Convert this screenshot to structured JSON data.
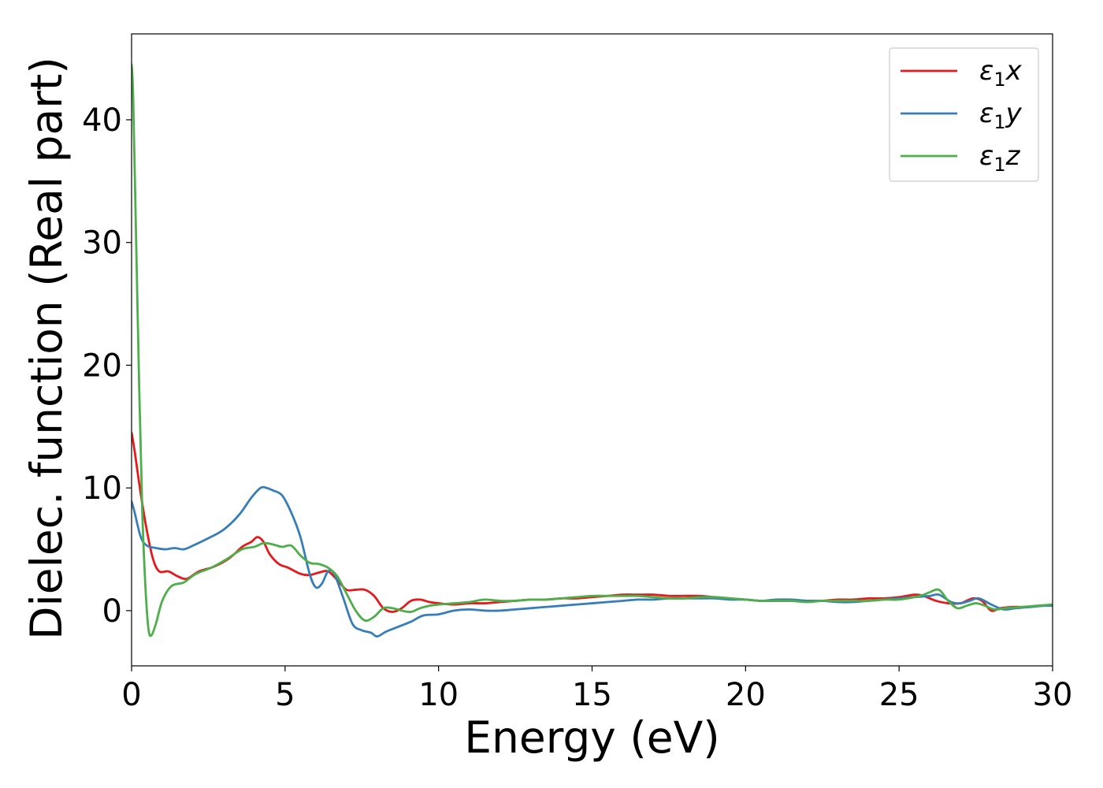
{
  "chart_data": {
    "type": "line",
    "title": "",
    "xlabel": "Energy (eV)",
    "ylabel": "Dielec. function (Real part)",
    "xlim": [
      0,
      30
    ],
    "ylim": [
      -4.5,
      47
    ],
    "xticks": [
      0,
      5,
      10,
      15,
      20,
      25,
      30
    ],
    "yticks": [
      0,
      10,
      20,
      30,
      40
    ],
    "grid": false,
    "legend_position": "top-right",
    "series": [
      {
        "name": "ε₁x",
        "label_main": "ε",
        "label_sub": "1",
        "label_suffix": "x",
        "color": "#e41a1c",
        "x": [
          0,
          0.1,
          0.3,
          0.5,
          0.7,
          0.9,
          1.2,
          1.5,
          1.8,
          2.2,
          2.7,
          3.2,
          3.6,
          3.9,
          4.1,
          4.3,
          4.5,
          4.8,
          5.1,
          5.5,
          5.8,
          6.1,
          6.4,
          6.7,
          7.0,
          7.3,
          7.6,
          7.9,
          8.2,
          8.5,
          8.8,
          9.1,
          9.4,
          9.7,
          10.0,
          10.5,
          11,
          11.5,
          12,
          12.5,
          13,
          13.5,
          14,
          14.5,
          15,
          15.5,
          16,
          16.5,
          17,
          17.5,
          18,
          18.5,
          19,
          19.5,
          20,
          20.5,
          21,
          21.5,
          22,
          22.5,
          23,
          23.5,
          24,
          24.5,
          25,
          25.5,
          25.8,
          26.2,
          26.6,
          27,
          27.4,
          27.7,
          28,
          28.3,
          28.7,
          29.2,
          29.6,
          30
        ],
        "y": [
          14.5,
          13,
          9.5,
          6.5,
          4.2,
          3.2,
          3.2,
          2.8,
          2.6,
          3.2,
          3.6,
          4.3,
          5.2,
          5.6,
          6.0,
          5.6,
          4.6,
          3.8,
          3.5,
          3.0,
          2.9,
          3.1,
          3.2,
          2.5,
          1.7,
          1.7,
          1.7,
          1.2,
          0.2,
          -0.1,
          0.2,
          0.8,
          0.9,
          0.7,
          0.6,
          0.5,
          0.6,
          0.6,
          0.7,
          0.8,
          0.9,
          0.9,
          1.0,
          1.0,
          1.1,
          1.2,
          1.3,
          1.3,
          1.3,
          1.2,
          1.2,
          1.2,
          1.1,
          1.0,
          0.9,
          0.8,
          0.8,
          0.8,
          0.8,
          0.8,
          0.9,
          0.9,
          1.0,
          1.0,
          1.1,
          1.3,
          1.2,
          0.8,
          0.6,
          0.6,
          1.0,
          0.8,
          0.0,
          0.2,
          0.3,
          0.3,
          0.4,
          0.4
        ]
      },
      {
        "name": "ε₁y",
        "label_main": "ε",
        "label_sub": "1",
        "label_suffix": "y",
        "color": "#377eb8",
        "x": [
          0,
          0.1,
          0.3,
          0.5,
          0.8,
          1.1,
          1.4,
          1.7,
          2.0,
          2.5,
          3.0,
          3.5,
          3.9,
          4.2,
          4.4,
          4.6,
          4.9,
          5.2,
          5.5,
          5.8,
          6.0,
          6.2,
          6.4,
          6.6,
          6.9,
          7.2,
          7.5,
          7.8,
          8.0,
          8.3,
          8.7,
          9.1,
          9.5,
          10.0,
          10.5,
          11,
          11.5,
          12,
          12.5,
          13,
          13.5,
          14,
          14.5,
          15,
          15.5,
          16,
          16.5,
          17,
          17.5,
          18,
          18.5,
          19,
          19.5,
          20,
          20.5,
          21,
          21.5,
          22,
          22.5,
          23,
          23.5,
          24,
          24.5,
          25,
          25.5,
          26,
          26.3,
          26.7,
          27,
          27.3,
          27.6,
          28,
          28.4,
          28.8,
          29.3,
          29.7,
          30
        ],
        "y": [
          8.9,
          8.0,
          6.0,
          5.3,
          5.1,
          5.0,
          5.1,
          5.0,
          5.3,
          5.9,
          6.6,
          7.8,
          9.2,
          10.0,
          10.0,
          9.8,
          9.4,
          8.0,
          6.0,
          3.0,
          1.9,
          2.2,
          3.2,
          3.0,
          1.0,
          -1.1,
          -1.6,
          -1.8,
          -2.1,
          -1.7,
          -1.3,
          -0.9,
          -0.4,
          -0.3,
          0.0,
          0.1,
          0.0,
          0.0,
          0.1,
          0.2,
          0.3,
          0.4,
          0.5,
          0.6,
          0.7,
          0.8,
          0.9,
          0.9,
          1.0,
          1.0,
          1.0,
          1.0,
          0.9,
          0.9,
          0.8,
          0.9,
          0.9,
          0.8,
          0.8,
          0.7,
          0.7,
          0.8,
          0.9,
          1.0,
          1.1,
          1.2,
          1.3,
          0.7,
          0.6,
          0.8,
          1.0,
          0.5,
          0.1,
          0.2,
          0.3,
          0.4,
          0.4
        ]
      },
      {
        "name": "ε₁z",
        "label_main": "ε",
        "label_sub": "1",
        "label_suffix": "z",
        "color": "#4daf4a",
        "x": [
          0,
          0.05,
          0.15,
          0.25,
          0.35,
          0.45,
          0.55,
          0.65,
          0.8,
          1.0,
          1.3,
          1.7,
          2.1,
          2.6,
          3.1,
          3.6,
          4.0,
          4.3,
          4.6,
          4.9,
          5.2,
          5.5,
          5.8,
          6.1,
          6.4,
          6.7,
          7.0,
          7.3,
          7.6,
          7.9,
          8.2,
          8.5,
          8.8,
          9.1,
          9.4,
          9.7,
          10.0,
          10.5,
          11,
          11.5,
          12,
          12.5,
          13,
          13.5,
          14,
          14.5,
          15,
          15.5,
          16,
          16.5,
          17,
          17.5,
          18,
          18.5,
          19,
          19.5,
          20,
          20.5,
          21,
          21.5,
          22,
          22.5,
          23,
          23.5,
          24,
          24.5,
          25,
          25.5,
          25.8,
          26.0,
          26.3,
          26.6,
          26.9,
          27.2,
          27.5,
          27.8,
          28.1,
          28.5,
          29,
          29.5,
          30
        ],
        "y": [
          44.5,
          42,
          30,
          18,
          8,
          2,
          -1.5,
          -2.0,
          -1.0,
          0.8,
          2.0,
          2.3,
          3.0,
          3.5,
          4.2,
          5.0,
          5.2,
          5.5,
          5.4,
          5.2,
          5.3,
          4.5,
          3.9,
          3.8,
          3.5,
          2.8,
          1.4,
          0.0,
          -0.8,
          -0.5,
          0.2,
          0.2,
          0.0,
          -0.1,
          0.2,
          0.4,
          0.5,
          0.6,
          0.7,
          0.9,
          0.8,
          0.8,
          0.9,
          0.9,
          1.0,
          1.1,
          1.2,
          1.2,
          1.2,
          1.2,
          1.1,
          1.0,
          1.0,
          1.1,
          1.1,
          1.0,
          0.9,
          0.8,
          0.8,
          0.8,
          0.7,
          0.8,
          0.8,
          0.8,
          0.8,
          0.9,
          0.9,
          1.1,
          1.3,
          1.5,
          1.7,
          0.8,
          0.2,
          0.4,
          0.6,
          0.4,
          0.1,
          0.2,
          0.3,
          0.4,
          0.5
        ]
      }
    ]
  }
}
